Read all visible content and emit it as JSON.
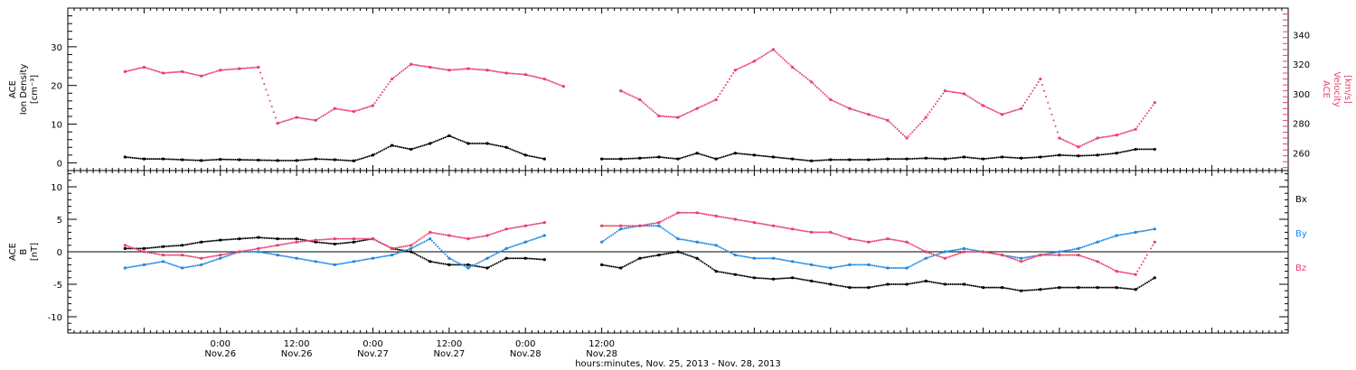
{
  "chart_data": [
    {
      "type": "scatter",
      "panel": "top",
      "ylabel_lines": [
        "ACE",
        "Ion Density",
        "[cm⁻³]"
      ],
      "y2label_lines": [
        "ACE",
        "Velocity",
        "[km/s]"
      ],
      "ylim": [
        -2,
        40
      ],
      "yticks": [
        "0",
        "10",
        "20",
        "30"
      ],
      "y2lim": [
        248,
        358
      ],
      "y2ticks": [
        "260",
        "280",
        "300",
        "320",
        "340"
      ],
      "colors": {
        "density": "#000000",
        "velocity": "#e8416b"
      },
      "series": [
        {
          "axis": "left",
          "color_key": "density",
          "note": "hours since Nov.25 00:00",
          "x": [
            9,
            12,
            15,
            18,
            21,
            24,
            27,
            30,
            33,
            36,
            39,
            42,
            45,
            48,
            51,
            54,
            57,
            60,
            63,
            66,
            69,
            72,
            75,
            78,
            81,
            84,
            87,
            90,
            93,
            96,
            99,
            102,
            105,
            108,
            111,
            114,
            117,
            120,
            123,
            126,
            129,
            132,
            135,
            138,
            141,
            144,
            147,
            150,
            153,
            156,
            159,
            162,
            165,
            168,
            171
          ],
          "values": [
            1.5,
            1.0,
            1.0,
            0.8,
            0.6,
            0.9,
            0.8,
            0.7,
            0.6,
            0.6,
            1.0,
            0.8,
            0.5,
            2.0,
            4.5,
            3.5,
            5.0,
            7.0,
            5.0,
            5.0,
            4.0,
            2.0,
            1.0,
            null,
            null,
            1.0,
            1.0,
            1.2,
            1.5,
            1.0,
            2.5,
            1.0,
            2.5,
            2.0,
            1.5,
            1.0,
            0.5,
            0.8,
            0.8,
            0.8,
            1.0,
            1.0,
            1.2,
            1.0,
            1.5,
            1.0,
            1.5,
            1.2,
            1.5,
            2.0,
            1.8,
            2.0,
            2.5,
            3.5,
            3.5
          ]
        },
        {
          "axis": "right",
          "color_key": "velocity",
          "x": [
            9,
            12,
            15,
            18,
            21,
            24,
            27,
            30,
            33,
            36,
            39,
            42,
            45,
            48,
            51,
            54,
            57,
            60,
            63,
            66,
            69,
            72,
            75,
            78,
            81,
            84,
            87,
            90,
            93,
            96,
            99,
            102,
            105,
            108,
            111,
            114,
            117,
            120,
            123,
            126,
            129,
            132,
            135,
            138,
            141,
            144,
            147,
            150,
            153,
            156,
            159,
            162,
            165,
            168,
            171
          ],
          "values": [
            315,
            318,
            314,
            315,
            312,
            316,
            317,
            318,
            280,
            284,
            282,
            290,
            288,
            292,
            310,
            320,
            318,
            316,
            317,
            316,
            314,
            313,
            310,
            305,
            null,
            null,
            302,
            296,
            285,
            284,
            290,
            296,
            316,
            322,
            330,
            318,
            308,
            296,
            290,
            286,
            282,
            270,
            284,
            302,
            300,
            292,
            286,
            290,
            310,
            270,
            264,
            270,
            272,
            276,
            294
          ]
        }
      ]
    },
    {
      "type": "scatter",
      "panel": "bottom",
      "ylabel_lines": [
        "ACE",
        "B",
        "[nT]"
      ],
      "ylim": [
        -12.5,
        12.5
      ],
      "yticks": [
        "-10",
        "-5",
        "0",
        "5",
        "10"
      ],
      "colors": {
        "Bx": "#000000",
        "By": "#1e88e5",
        "Bz": "#e8416b"
      },
      "legend": [
        "Bx",
        "By",
        "Bz"
      ],
      "series": [
        {
          "name": "Bx",
          "color_key": "Bx",
          "x": [
            9,
            12,
            15,
            18,
            21,
            24,
            27,
            30,
            33,
            36,
            39,
            42,
            45,
            48,
            51,
            54,
            57,
            60,
            63,
            66,
            69,
            72,
            75,
            78,
            81,
            84,
            87,
            90,
            93,
            96,
            99,
            102,
            105,
            108,
            111,
            114,
            117,
            120,
            123,
            126,
            129,
            132,
            135,
            138,
            141,
            144,
            147,
            150,
            153,
            156,
            159,
            162,
            165,
            168,
            171
          ],
          "values": [
            0.5,
            0.5,
            0.8,
            1.0,
            1.5,
            1.8,
            2.0,
            2.2,
            2.0,
            2.0,
            1.5,
            1.2,
            1.5,
            2.0,
            0.5,
            0.0,
            -1.5,
            -2.0,
            -2.0,
            -2.5,
            -1.0,
            -1.0,
            -1.2,
            null,
            null,
            -2.0,
            -2.5,
            -1.0,
            -0.5,
            0.0,
            -1.0,
            -3.0,
            -3.5,
            -4.0,
            -4.2,
            -4.0,
            -4.5,
            -5.0,
            -5.5,
            -5.5,
            -5.0,
            -5.0,
            -4.5,
            -5.0,
            -5.0,
            -5.5,
            -5.5,
            -6.0,
            -5.8,
            -5.5,
            -5.5,
            -5.5,
            -5.5,
            -5.8,
            -4.0
          ]
        },
        {
          "name": "By",
          "color_key": "By",
          "x": [
            9,
            12,
            15,
            18,
            21,
            24,
            27,
            30,
            33,
            36,
            39,
            42,
            45,
            48,
            51,
            54,
            57,
            60,
            63,
            66,
            69,
            72,
            75,
            78,
            81,
            84,
            87,
            90,
            93,
            96,
            99,
            102,
            105,
            108,
            111,
            114,
            117,
            120,
            123,
            126,
            129,
            132,
            135,
            138,
            141,
            144,
            147,
            150,
            153,
            156,
            159,
            162,
            165,
            168,
            171
          ],
          "values": [
            -2.5,
            -2.0,
            -1.5,
            -2.5,
            -2.0,
            -1.0,
            0.0,
            0.0,
            -0.5,
            -1.0,
            -1.5,
            -2.0,
            -1.5,
            -1.0,
            -0.5,
            0.5,
            2.0,
            -1.0,
            -2.5,
            -1.0,
            0.5,
            1.5,
            2.5,
            null,
            null,
            1.5,
            3.5,
            4.0,
            4.0,
            2.0,
            1.5,
            1.0,
            -0.5,
            -1.0,
            -1.0,
            -1.5,
            -2.0,
            -2.5,
            -2.0,
            -2.0,
            -2.5,
            -2.5,
            -1.0,
            0.0,
            0.5,
            0.0,
            -0.5,
            -1.0,
            -0.5,
            0.0,
            0.5,
            1.5,
            2.5,
            3.0,
            3.5
          ]
        },
        {
          "name": "Bz",
          "color_key": "Bz",
          "x": [
            9,
            12,
            15,
            18,
            21,
            24,
            27,
            30,
            33,
            36,
            39,
            42,
            45,
            48,
            51,
            54,
            57,
            60,
            63,
            66,
            69,
            72,
            75,
            78,
            81,
            84,
            87,
            90,
            93,
            96,
            99,
            102,
            105,
            108,
            111,
            114,
            117,
            120,
            123,
            126,
            129,
            132,
            135,
            138,
            141,
            144,
            147,
            150,
            153,
            156,
            159,
            162,
            165,
            168,
            171
          ],
          "values": [
            1.0,
            0.0,
            -0.5,
            -0.5,
            -1.0,
            -0.5,
            0.0,
            0.5,
            1.0,
            1.5,
            1.8,
            2.0,
            2.0,
            2.0,
            0.5,
            1.0,
            3.0,
            2.5,
            2.0,
            2.5,
            3.5,
            4.0,
            4.5,
            null,
            null,
            4.0,
            4.0,
            4.0,
            4.5,
            6.0,
            6.0,
            5.5,
            5.0,
            4.5,
            4.0,
            3.5,
            3.0,
            3.0,
            2.0,
            1.5,
            2.0,
            1.5,
            0.0,
            -1.0,
            0.0,
            0.0,
            -0.5,
            -1.5,
            -0.5,
            -0.5,
            -0.5,
            -1.5,
            -3.0,
            -3.5,
            1.5
          ]
        }
      ]
    }
  ],
  "x_axis": {
    "xlim": [
      0,
      192
    ],
    "time_labels": [
      "0:00",
      "12:00",
      "0:00",
      "12:00",
      "0:00",
      "12:00"
    ],
    "date_labels": [
      "Nov.26",
      "Nov.26",
      "Nov.27",
      "Nov.27",
      "Nov.28",
      "Nov.28"
    ],
    "label_hours": [
      24,
      36,
      48,
      60,
      72,
      84
    ],
    "xlabel": "hours:minutes, Nov. 25, 2013 - Nov. 28, 2013"
  }
}
